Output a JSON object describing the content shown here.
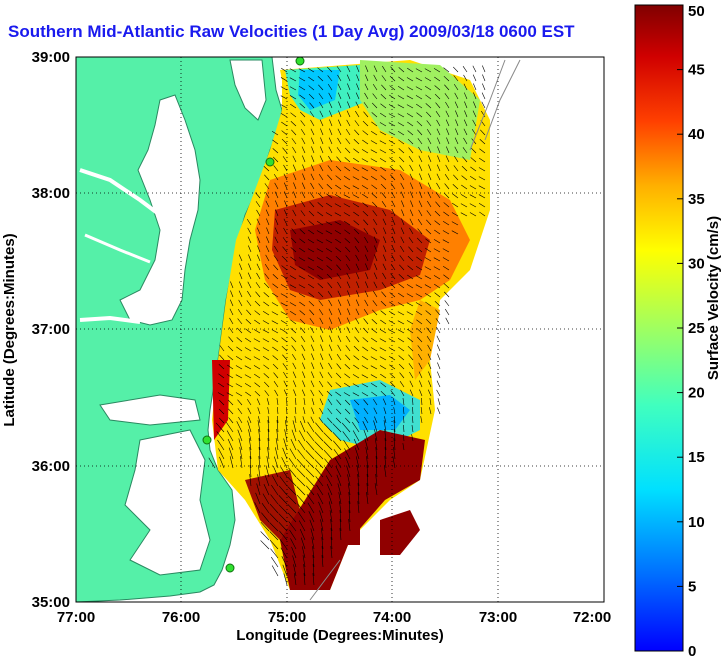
{
  "title": "Southern Mid-Atlantic Raw Velocities (1 Day Avg) 2009/03/18 0600 EST",
  "xlabel": "Longitude (Degrees:Minutes)",
  "ylabel": "Latitude (Degrees:Minutes)",
  "colorbar_label": "Surface Velocity (cm/s)",
  "x_ticks": [
    "77:00",
    "76:00",
    "75:00",
    "74:00",
    "73:00",
    "72:00"
  ],
  "y_ticks": [
    "39:00",
    "38:00",
    "37:00",
    "36:00",
    "35:00"
  ],
  "colorbar_ticks": [
    "50",
    "45",
    "40",
    "35",
    "30",
    "25",
    "20",
    "15",
    "10",
    "5",
    "0"
  ],
  "x_range": [
    -77,
    -72
  ],
  "y_range": [
    35,
    39
  ],
  "colorbar_range": [
    0,
    50
  ],
  "colors": {
    "land": "#55f0a8",
    "title": "#1a1aee",
    "grid": "#000000"
  }
}
